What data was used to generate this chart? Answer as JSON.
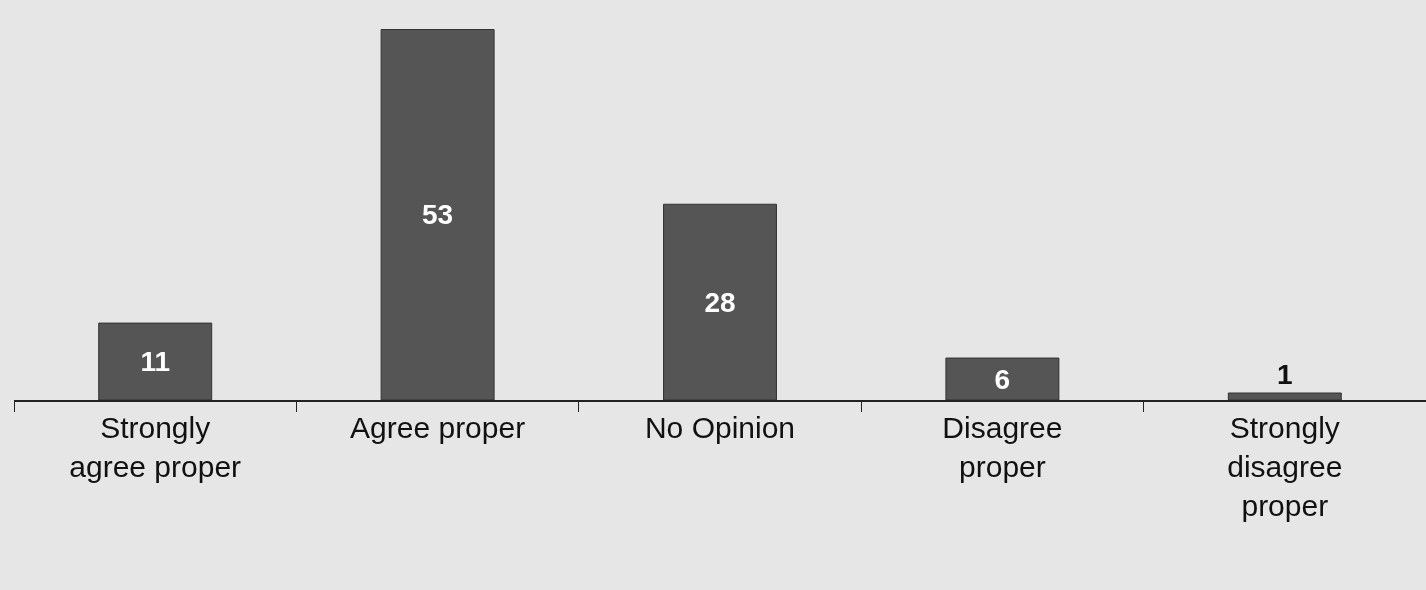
{
  "chart_data": {
    "type": "bar",
    "categories": [
      "Strongly agree proper",
      "Agree proper",
      "No Opinion",
      "Disagree proper",
      "Strongly disagree proper"
    ],
    "values": [
      11,
      53,
      28,
      6,
      1
    ],
    "color": "#555555",
    "data_labels": true
  }
}
